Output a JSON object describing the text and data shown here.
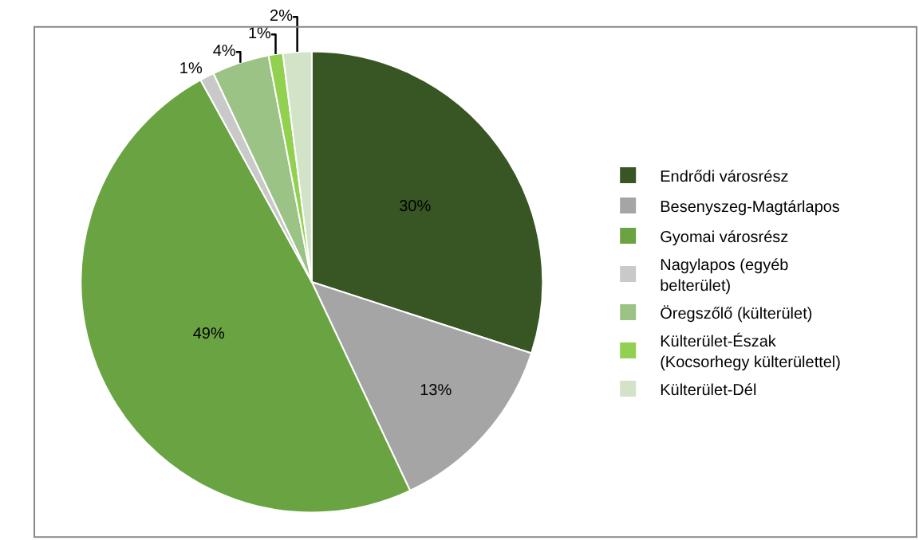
{
  "chart_data": {
    "type": "pie",
    "categories": [
      "Endrődi városrész",
      "Besenyszeg-Magtárlapos",
      "Gyomai városrész",
      "Nagylapos (egyéb belterület)",
      "Öregszőlő (külterület)",
      "Külterület-Észak (Kocsorhegy külterülettel)",
      "Külterület-Dél"
    ],
    "values": [
      30,
      13,
      49,
      1,
      4,
      1,
      2
    ],
    "value_labels": [
      "30%",
      "13%",
      "49%",
      "1%",
      "4%",
      "1%",
      "2%"
    ],
    "colors": [
      "#375623",
      "#a5a5a5",
      "#6aa442",
      "#c9c9c9",
      "#9bc386",
      "#92d050",
      "#d3e3c8"
    ],
    "legend": "right"
  }
}
